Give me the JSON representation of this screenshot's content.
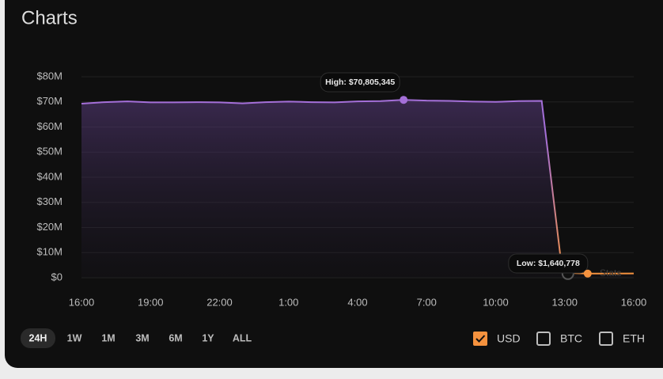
{
  "header": {
    "title": "Charts"
  },
  "chart_data": {
    "type": "line",
    "x": [
      0,
      1,
      2,
      3,
      4,
      5,
      6,
      7,
      8,
      9,
      10,
      11,
      12,
      13,
      14,
      15,
      16,
      17,
      18,
      19,
      20,
      20.9,
      22,
      24
    ],
    "series": [
      {
        "name": "USD",
        "color": "#a46fd8",
        "low_color": "#f5923e",
        "values": [
          69300000,
          69900000,
          70200000,
          69800000,
          69800000,
          69900000,
          69800000,
          69400000,
          69900000,
          70100000,
          69900000,
          69800000,
          70200000,
          70300000,
          70805345,
          70500000,
          70400000,
          70100000,
          70000000,
          70300000,
          70400000,
          2000000,
          1640778,
          1700000
        ]
      }
    ],
    "annotations": {
      "high": "High: $70,805,345",
      "low": "Low: $1,640,778"
    },
    "xlim": [
      0,
      24
    ],
    "xticks": [
      {
        "value": 0,
        "label": "16:00"
      },
      {
        "value": 3,
        "label": "19:00"
      },
      {
        "value": 6,
        "label": "22:00"
      },
      {
        "value": 9,
        "label": "1:00"
      },
      {
        "value": 12,
        "label": "4:00"
      },
      {
        "value": 15,
        "label": "7:00"
      },
      {
        "value": 18,
        "label": "10:00"
      },
      {
        "value": 21,
        "label": "13:00"
      },
      {
        "value": 24,
        "label": "16:00"
      }
    ],
    "ylim": [
      0,
      80000000
    ],
    "yticks": [
      {
        "value": 0,
        "label": "$0"
      },
      {
        "value": 10000000,
        "label": "$10M"
      },
      {
        "value": 20000000,
        "label": "$20M"
      },
      {
        "value": 30000000,
        "label": "$30M"
      },
      {
        "value": 40000000,
        "label": "$40M"
      },
      {
        "value": 50000000,
        "label": "$50M"
      },
      {
        "value": 60000000,
        "label": "$60M"
      },
      {
        "value": 70000000,
        "label": "$70M"
      },
      {
        "value": 80000000,
        "label": "$80M"
      }
    ],
    "grid": true
  },
  "ui": {
    "overlay_text": "Stats",
    "ranges": [
      "24H",
      "1W",
      "1M",
      "3M",
      "6M",
      "1Y",
      "ALL"
    ],
    "selected_range": 0,
    "currencies": [
      {
        "label": "USD",
        "checked": true
      },
      {
        "label": "BTC",
        "checked": false
      },
      {
        "label": "ETH",
        "checked": false
      }
    ]
  }
}
